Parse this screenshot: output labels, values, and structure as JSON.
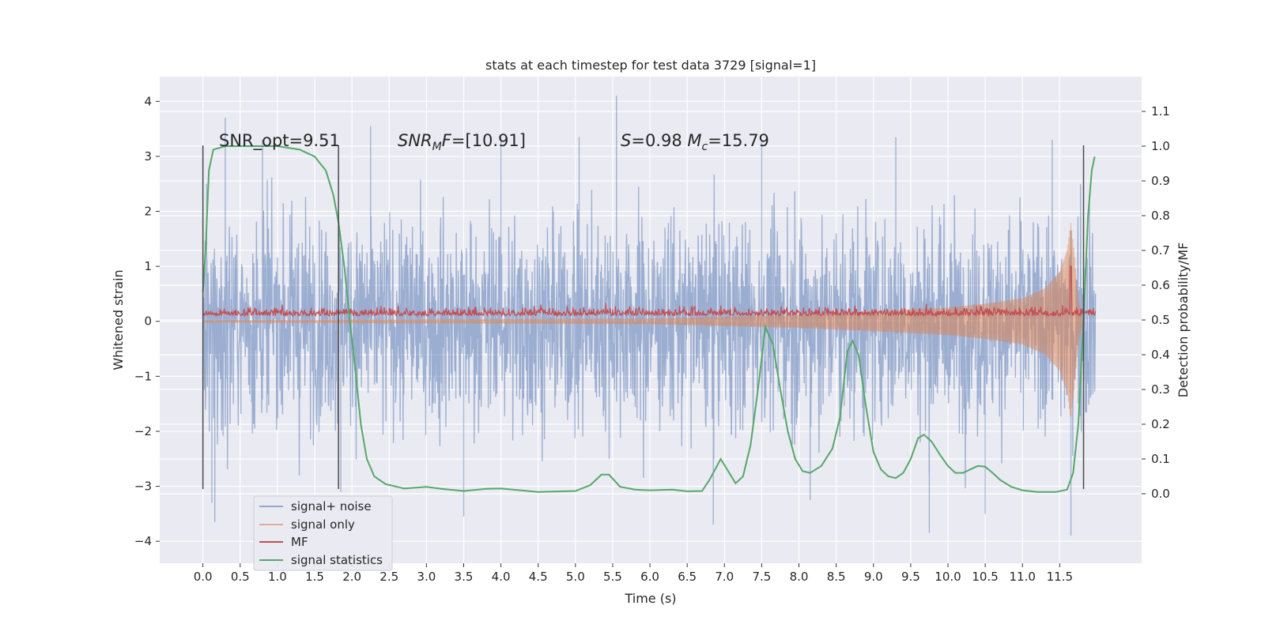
{
  "chart_data": {
    "type": "line",
    "title": "stats at each timestep for test data 3729 [signal=1]",
    "xlabel": "Time (s)",
    "ylabel_left": "Whitened strain",
    "ylabel_right": "Detection probability/MF",
    "xlim": [
      -0.58,
      12.6
    ],
    "ylim_left": [
      -4.4,
      4.45
    ],
    "ylim_right": [
      -0.2,
      1.2
    ],
    "x_ticks": [
      "0.0",
      "0.5",
      "1.0",
      "1.5",
      "2.0",
      "2.5",
      "3.0",
      "3.5",
      "4.0",
      "4.5",
      "5.0",
      "5.5",
      "6.0",
      "6.5",
      "7.0",
      "7.5",
      "8.0",
      "8.5",
      "9.0",
      "9.5",
      "10.0",
      "10.5",
      "11.0",
      "11.5"
    ],
    "y_ticks_left": [
      "−4",
      "−3",
      "−2",
      "−1",
      "0",
      "1",
      "2",
      "3",
      "4"
    ],
    "y_ticks_right": [
      "0.0",
      "0.1",
      "0.2",
      "0.3",
      "0.4",
      "0.5",
      "0.6",
      "0.7",
      "0.8",
      "0.9",
      "1.0",
      "1.1"
    ],
    "grid": true,
    "legend_position": "lower-left",
    "annotations": [
      {
        "text": "SNR_opt=9.51",
        "x": 0.2,
        "y": 3.1
      },
      {
        "text": "SNR_MF=[10.91]",
        "x": 2.6,
        "y": 3.1
      },
      {
        "text": "S=0.98   M_c=15.79",
        "x": 5.6,
        "y": 3.1
      }
    ],
    "vlines_left_axis": [
      {
        "x": 0.0,
        "ymin": -3.05,
        "ymax": 3.2
      },
      {
        "x": 1.82,
        "ymin": -3.05,
        "ymax": 3.2
      },
      {
        "x": 11.82,
        "ymin": -3.05,
        "ymax": 3.2
      }
    ],
    "series": [
      {
        "name": "signal+ noise",
        "axis": "left",
        "color": "#4c72b0",
        "t_range": [
          0.0,
          11.98
        ],
        "envelope_hi": 2.35,
        "envelope_lo": -2.35,
        "peaks": [
          {
            "x": 0.05,
            "y": 2.5
          },
          {
            "x": 0.3,
            "y": 3.7
          },
          {
            "x": 0.12,
            "y": -3.3
          },
          {
            "x": 0.16,
            "y": -3.65
          },
          {
            "x": 0.8,
            "y": 3.3
          },
          {
            "x": 1.85,
            "y": -3.1
          },
          {
            "x": 2.25,
            "y": 3.55
          },
          {
            "x": 3.5,
            "y": -3.55
          },
          {
            "x": 4.0,
            "y": 3.35
          },
          {
            "x": 5.05,
            "y": 3.35
          },
          {
            "x": 5.55,
            "y": 4.1
          },
          {
            "x": 6.85,
            "y": -3.7
          },
          {
            "x": 7.5,
            "y": 3.3
          },
          {
            "x": 8.15,
            "y": -3.25
          },
          {
            "x": 9.3,
            "y": 3.35
          },
          {
            "x": 9.75,
            "y": -3.85
          },
          {
            "x": 10.5,
            "y": -3.5
          },
          {
            "x": 11.4,
            "y": 3.3
          },
          {
            "x": 11.65,
            "y": -3.9
          },
          {
            "x": 11.9,
            "y": 2.3
          }
        ]
      },
      {
        "name": "signal only",
        "axis": "left",
        "color": "#dd8452",
        "description_points": [
          [
            0.0,
            0.02
          ],
          [
            6.0,
            0.05
          ],
          [
            8.0,
            0.12
          ],
          [
            9.0,
            0.18
          ],
          [
            10.0,
            0.25
          ],
          [
            10.5,
            0.32
          ],
          [
            11.0,
            0.42
          ],
          [
            11.3,
            0.6
          ],
          [
            11.5,
            0.9
          ],
          [
            11.6,
            1.3
          ],
          [
            11.65,
            1.8
          ],
          [
            11.7,
            1.2
          ],
          [
            11.75,
            0.4
          ],
          [
            11.8,
            0.1
          ]
        ]
      },
      {
        "name": "MF",
        "axis": "left",
        "color": "#c44e52",
        "baseline": 0.13,
        "noise_amp": 0.1,
        "spike": {
          "x": 11.65,
          "y": 1.0
        }
      },
      {
        "name": "signal statistics",
        "axis": "right",
        "color": "#55a868",
        "points": [
          [
            0.0,
            0.58
          ],
          [
            0.04,
            0.72
          ],
          [
            0.08,
            0.93
          ],
          [
            0.14,
            0.99
          ],
          [
            0.3,
            1.0
          ],
          [
            1.0,
            1.0
          ],
          [
            1.3,
            0.99
          ],
          [
            1.5,
            0.97
          ],
          [
            1.65,
            0.93
          ],
          [
            1.75,
            0.86
          ],
          [
            1.82,
            0.78
          ],
          [
            1.9,
            0.65
          ],
          [
            1.97,
            0.5
          ],
          [
            2.05,
            0.35
          ],
          [
            2.12,
            0.2
          ],
          [
            2.2,
            0.1
          ],
          [
            2.3,
            0.05
          ],
          [
            2.45,
            0.028
          ],
          [
            2.7,
            0.015
          ],
          [
            3.0,
            0.02
          ],
          [
            3.2,
            0.014
          ],
          [
            3.5,
            0.008
          ],
          [
            3.8,
            0.014
          ],
          [
            4.0,
            0.015
          ],
          [
            4.5,
            0.005
          ],
          [
            5.0,
            0.008
          ],
          [
            5.2,
            0.025
          ],
          [
            5.35,
            0.055
          ],
          [
            5.45,
            0.055
          ],
          [
            5.6,
            0.02
          ],
          [
            5.8,
            0.012
          ],
          [
            6.0,
            0.01
          ],
          [
            6.3,
            0.012
          ],
          [
            6.5,
            0.007
          ],
          [
            6.7,
            0.008
          ],
          [
            6.8,
            0.04
          ],
          [
            6.95,
            0.1
          ],
          [
            7.05,
            0.065
          ],
          [
            7.15,
            0.03
          ],
          [
            7.25,
            0.05
          ],
          [
            7.35,
            0.14
          ],
          [
            7.45,
            0.3
          ],
          [
            7.55,
            0.48
          ],
          [
            7.65,
            0.43
          ],
          [
            7.75,
            0.3
          ],
          [
            7.85,
            0.18
          ],
          [
            7.95,
            0.1
          ],
          [
            8.05,
            0.065
          ],
          [
            8.15,
            0.06
          ],
          [
            8.3,
            0.08
          ],
          [
            8.45,
            0.13
          ],
          [
            8.55,
            0.22
          ],
          [
            8.65,
            0.41
          ],
          [
            8.72,
            0.44
          ],
          [
            8.8,
            0.4
          ],
          [
            8.9,
            0.25
          ],
          [
            9.0,
            0.12
          ],
          [
            9.1,
            0.07
          ],
          [
            9.2,
            0.05
          ],
          [
            9.3,
            0.045
          ],
          [
            9.4,
            0.06
          ],
          [
            9.5,
            0.1
          ],
          [
            9.6,
            0.16
          ],
          [
            9.68,
            0.17
          ],
          [
            9.78,
            0.15
          ],
          [
            9.9,
            0.11
          ],
          [
            10.0,
            0.08
          ],
          [
            10.1,
            0.06
          ],
          [
            10.2,
            0.06
          ],
          [
            10.3,
            0.07
          ],
          [
            10.4,
            0.08
          ],
          [
            10.5,
            0.078
          ],
          [
            10.6,
            0.06
          ],
          [
            10.7,
            0.04
          ],
          [
            10.85,
            0.02
          ],
          [
            11.0,
            0.01
          ],
          [
            11.2,
            0.005
          ],
          [
            11.45,
            0.005
          ],
          [
            11.6,
            0.012
          ],
          [
            11.68,
            0.06
          ],
          [
            11.75,
            0.2
          ],
          [
            11.82,
            0.5
          ],
          [
            11.88,
            0.8
          ],
          [
            11.93,
            0.93
          ],
          [
            11.97,
            0.97
          ]
        ]
      }
    ]
  }
}
